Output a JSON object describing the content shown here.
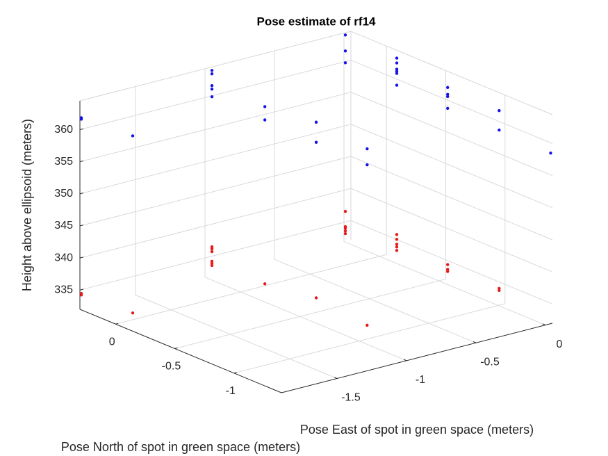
{
  "chart_data": {
    "type": "scatter3d",
    "title": "Pose estimate of rf14",
    "xlabel": "Pose East of spot in green space (meters)",
    "ylabel": "Pose North of spot in green space (meters)",
    "zlabel": "Height above ellipsoid (meters)",
    "xlim": [
      -1.9,
      0.05
    ],
    "ylim": [
      -1.4,
      0.3
    ],
    "zlim": [
      332,
      364.5
    ],
    "xticks": [
      -1.5,
      -1,
      -0.5,
      0
    ],
    "yticks": [
      -1,
      -0.5,
      0
    ],
    "zticks": [
      335,
      340,
      345,
      350,
      355,
      360
    ],
    "grid": true,
    "series": [
      {
        "color": "#e41a1a",
        "x": [
          -1.894,
          -1.894,
          -1.856,
          -0.95,
          -0.95,
          -0.95,
          -0.95,
          -0.95,
          -0.95,
          -0.953,
          -0.882,
          -0.942,
          0.01,
          0.01,
          0.01,
          0.01,
          0.01,
          0.039,
          0.039,
          0.039,
          0.039,
          0.039,
          0.021,
          0.021,
          0.021,
          0.008,
          0.008
        ],
        "y": [
          0.295,
          0.295,
          -0.094,
          0.3,
          0.3,
          0.3,
          0.3,
          0.3,
          0.3,
          -0.15,
          -0.5,
          -1.0,
          0.3,
          0.3,
          0.3,
          0.3,
          0.3,
          -0.1,
          -0.1,
          -0.1,
          -0.1,
          -0.1,
          -0.55,
          -0.55,
          -0.55,
          -1.0,
          -1.0
        ],
        "z": [
          334.47,
          334.25,
          334.2,
          336.47,
          336.15,
          335.71,
          334.2,
          333.87,
          333.55,
          334.15,
          334.25,
          334.14,
          336.65,
          334.27,
          334.06,
          333.62,
          333.19,
          335.95,
          335.19,
          334.44,
          334.0,
          333.46,
          334.8,
          334.05,
          333.72,
          334.6,
          334.28
        ]
      },
      {
        "color": "#1414e6",
        "x": [
          -1.894,
          -1.894,
          -1.856,
          -0.95,
          -0.95,
          -0.95,
          -0.95,
          -0.95,
          -0.953,
          -0.953,
          -0.882,
          -0.882,
          -0.942,
          -0.942,
          0.01,
          0.01,
          0.01,
          0.039,
          0.039,
          0.039,
          0.039,
          0.039,
          0.039,
          0.021,
          0.021,
          0.021,
          0.021,
          0.008,
          0.008,
          0.046
        ],
        "y": [
          0.295,
          0.295,
          -0.094,
          0.3,
          0.3,
          0.3,
          0.3,
          0.3,
          -0.15,
          -0.15,
          -0.5,
          -0.5,
          -1.0,
          -1.0,
          0.3,
          0.3,
          0.3,
          -0.1,
          -0.1,
          -0.1,
          -0.1,
          -0.1,
          -0.1,
          -0.55,
          -0.55,
          -0.55,
          -0.55,
          -1.0,
          -1.0,
          -1.39
        ],
        "z": [
          361.85,
          361.64,
          361.8,
          363.96,
          363.42,
          361.58,
          361.04,
          359.85,
          361.76,
          359.7,
          361.63,
          358.49,
          361.63,
          359.14,
          364.14,
          361.65,
          359.81,
          363.44,
          362.68,
          361.71,
          361.38,
          361.06,
          359.22,
          362.4,
          361.32,
          360.99,
          359.15,
          362.31,
          359.28,
          358.46
        ]
      }
    ]
  }
}
